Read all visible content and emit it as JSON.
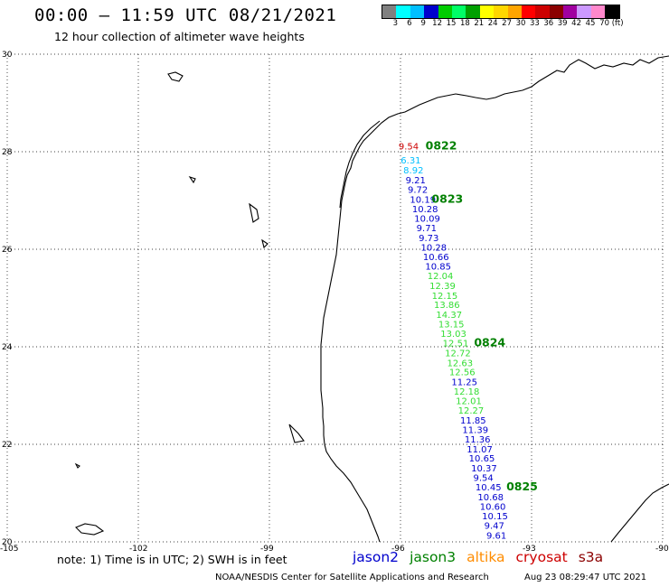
{
  "title": "00:00 – 11:59 UTC 08/21/2021",
  "subtitle": "12 hour collection of altimeter wave heights",
  "colorbar": {
    "colors": [
      "#808080",
      "#00ffff",
      "#00bfff",
      "#0000cd",
      "#00cd00",
      "#00ff66",
      "#00a000",
      "#ffff00",
      "#ffd700",
      "#ffa500",
      "#ff0000",
      "#cd0000",
      "#8b0000",
      "#a000a0",
      "#cc99ff",
      "#ff88cc",
      "#000000"
    ],
    "labels": [
      "3",
      "6",
      "9",
      "12",
      "15",
      "18",
      "21",
      "24",
      "27",
      "30",
      "33",
      "36",
      "39",
      "42",
      "45",
      "70 (ft)"
    ]
  },
  "map": {
    "lon_range": [
      -105,
      -90
    ],
    "lat_range": [
      20,
      30
    ],
    "lon_ticks": [
      "-105",
      "-102",
      "-99",
      "-96",
      "-93",
      "-90"
    ],
    "lat_ticks": [
      "30",
      "28",
      "26",
      "24",
      "22",
      "20"
    ],
    "grid": "dotted"
  },
  "track": {
    "points": [
      {
        "lon": -95.92,
        "lat": 28.12,
        "swh": "9.54",
        "color": "#cd0000"
      },
      {
        "lon": -95.87,
        "lat": 27.83,
        "swh": "6.31",
        "color": "#00bfff"
      },
      {
        "lon": -95.81,
        "lat": 27.63,
        "swh": "8.92",
        "color": "#00bfff"
      },
      {
        "lon": -95.76,
        "lat": 27.43,
        "swh": "9.21",
        "color": "#0000cd"
      },
      {
        "lon": -95.71,
        "lat": 27.23,
        "swh": "9.72",
        "color": "#0000cd"
      },
      {
        "lon": -95.66,
        "lat": 27.03,
        "swh": "10.19",
        "color": "#0000cd"
      },
      {
        "lon": -95.61,
        "lat": 26.83,
        "swh": "10.28",
        "color": "#0000cd"
      },
      {
        "lon": -95.56,
        "lat": 26.64,
        "swh": "10.09",
        "color": "#0000cd"
      },
      {
        "lon": -95.51,
        "lat": 26.44,
        "swh": "9.71",
        "color": "#0000cd"
      },
      {
        "lon": -95.46,
        "lat": 26.24,
        "swh": "9.73",
        "color": "#0000cd"
      },
      {
        "lon": -95.41,
        "lat": 26.05,
        "swh": "10.28",
        "color": "#0000cd"
      },
      {
        "lon": -95.36,
        "lat": 25.85,
        "swh": "10.66",
        "color": "#0000cd"
      },
      {
        "lon": -95.31,
        "lat": 25.66,
        "swh": "10.85",
        "color": "#0000cd"
      },
      {
        "lon": -95.26,
        "lat": 25.46,
        "swh": "12.04",
        "color": "#33dd33"
      },
      {
        "lon": -95.21,
        "lat": 25.26,
        "swh": "12.39",
        "color": "#33dd33"
      },
      {
        "lon": -95.16,
        "lat": 25.06,
        "swh": "12.15",
        "color": "#33dd33"
      },
      {
        "lon": -95.11,
        "lat": 24.87,
        "swh": "13.86",
        "color": "#33dd33"
      },
      {
        "lon": -95.06,
        "lat": 24.67,
        "swh": "14.37",
        "color": "#33dd33"
      },
      {
        "lon": -95.01,
        "lat": 24.47,
        "swh": "13.15",
        "color": "#33dd33"
      },
      {
        "lon": -94.96,
        "lat": 24.28,
        "swh": "13.03",
        "color": "#33dd33"
      },
      {
        "lon": -94.91,
        "lat": 24.08,
        "swh": "12.51",
        "color": "#33dd33"
      },
      {
        "lon": -94.86,
        "lat": 23.88,
        "swh": "12.72",
        "color": "#33dd33"
      },
      {
        "lon": -94.81,
        "lat": 23.68,
        "swh": "12.63",
        "color": "#33dd33"
      },
      {
        "lon": -94.76,
        "lat": 23.49,
        "swh": "12.56",
        "color": "#33dd33"
      },
      {
        "lon": -94.71,
        "lat": 23.29,
        "swh": "11.25",
        "color": "#0000cd"
      },
      {
        "lon": -94.66,
        "lat": 23.09,
        "swh": "12.18",
        "color": "#33dd33"
      },
      {
        "lon": -94.61,
        "lat": 22.9,
        "swh": "12.01",
        "color": "#33dd33"
      },
      {
        "lon": -94.56,
        "lat": 22.7,
        "swh": "12.27",
        "color": "#33dd33"
      },
      {
        "lon": -94.51,
        "lat": 22.5,
        "swh": "11.85",
        "color": "#0000cd"
      },
      {
        "lon": -94.46,
        "lat": 22.31,
        "swh": "11.39",
        "color": "#0000cd"
      },
      {
        "lon": -94.41,
        "lat": 22.11,
        "swh": "11.36",
        "color": "#0000cd"
      },
      {
        "lon": -94.36,
        "lat": 21.91,
        "swh": "11.07",
        "color": "#0000cd"
      },
      {
        "lon": -94.31,
        "lat": 21.72,
        "swh": "10.65",
        "color": "#0000cd"
      },
      {
        "lon": -94.26,
        "lat": 21.52,
        "swh": "10.37",
        "color": "#0000cd"
      },
      {
        "lon": -94.21,
        "lat": 21.32,
        "swh": "9.54",
        "color": "#0000cd"
      },
      {
        "lon": -94.16,
        "lat": 21.13,
        "swh": "10.45",
        "color": "#0000cd"
      },
      {
        "lon": -94.11,
        "lat": 20.93,
        "swh": "10.68",
        "color": "#0000cd"
      },
      {
        "lon": -94.06,
        "lat": 20.73,
        "swh": "10.60",
        "color": "#0000cd"
      },
      {
        "lon": -94.01,
        "lat": 20.54,
        "swh": "10.15",
        "color": "#0000cd"
      },
      {
        "lon": -93.96,
        "lat": 20.34,
        "swh": "9.47",
        "color": "#0000cd"
      },
      {
        "lon": -93.91,
        "lat": 20.14,
        "swh": "9.61",
        "color": "#0000cd"
      }
    ],
    "time_labels": [
      {
        "text": "0822",
        "lon": -95.8,
        "lat": 28.12
      },
      {
        "text": "0823",
        "lon": -95.66,
        "lat": 27.03
      },
      {
        "text": "0824",
        "lon": -94.69,
        "lat": 24.08
      },
      {
        "text": "0825",
        "lon": -93.95,
        "lat": 21.13
      }
    ],
    "time_label_color": "#008000"
  },
  "footer_note": "note: 1) Time is in UTC; 2) SWH is in feet",
  "legend": [
    {
      "name": "jason2",
      "color": "#0000cd"
    },
    {
      "name": "jason3",
      "color": "#008000"
    },
    {
      "name": "altika",
      "color": "#ff8c00"
    },
    {
      "name": "cryosat",
      "color": "#cd0000"
    },
    {
      "name": "s3a",
      "color": "#8b0000"
    }
  ],
  "credit": "NOAA/NESDIS Center for Satellite Applications and Research",
  "timestamp": "Aug 23 08:29:47 UTC 2021"
}
